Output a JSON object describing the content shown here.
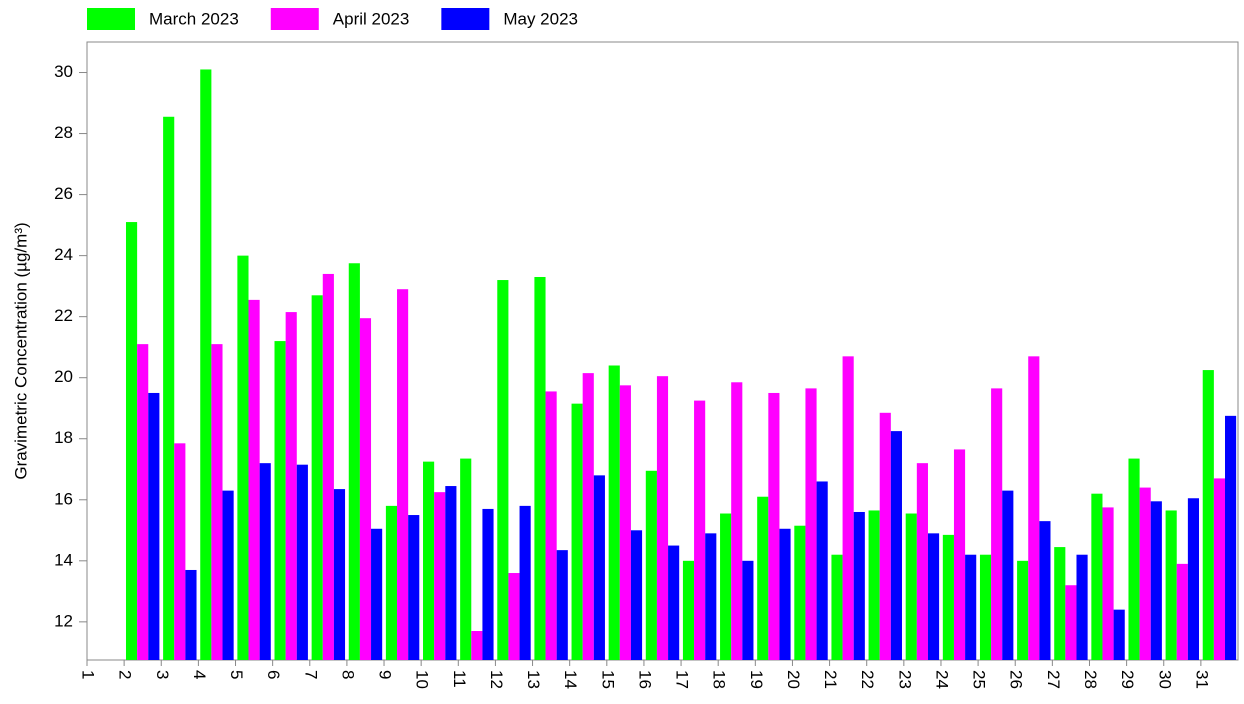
{
  "chart_data": {
    "type": "bar",
    "y_label": "Gravimetric Concentration  (µg/m³)",
    "categories": [
      "1",
      "2",
      "3",
      "4",
      "5",
      "6",
      "7",
      "8",
      "9",
      "10",
      "11",
      "12",
      "13",
      "14",
      "15",
      "16",
      "17",
      "18",
      "19",
      "20",
      "21",
      "22",
      "23",
      "24",
      "25",
      "26",
      "27",
      "28",
      "29",
      "30",
      "31"
    ],
    "series": [
      {
        "name": "March 2023",
        "color": "#00ff00",
        "values": [
          null,
          25.1,
          28.55,
          30.1,
          24.0,
          21.2,
          22.7,
          23.75,
          15.8,
          17.25,
          17.35,
          23.2,
          23.3,
          19.15,
          20.4,
          16.95,
          14.0,
          15.55,
          16.1,
          15.15,
          14.2,
          15.65,
          15.55,
          14.85,
          14.2,
          14.0,
          14.45,
          16.2,
          17.35,
          15.65,
          20.25
        ]
      },
      {
        "name": "April 2023",
        "color": "#ff00ff",
        "values": [
          null,
          21.1,
          17.85,
          21.1,
          22.55,
          22.15,
          23.4,
          21.95,
          22.9,
          16.25,
          11.7,
          13.6,
          19.55,
          20.15,
          19.75,
          20.05,
          19.25,
          19.85,
          19.5,
          19.65,
          20.7,
          18.85,
          17.2,
          17.65,
          19.65,
          20.7,
          13.2,
          15.75,
          16.4,
          13.9,
          16.7
        ]
      },
      {
        "name": "May 2023",
        "color": "#0000ff",
        "values": [
          null,
          19.5,
          13.7,
          16.3,
          17.2,
          17.15,
          16.35,
          15.05,
          15.5,
          16.45,
          15.7,
          15.8,
          14.35,
          16.8,
          15.0,
          14.5,
          14.9,
          14.0,
          15.05,
          16.6,
          15.6,
          18.25,
          14.9,
          14.2,
          16.3,
          15.3,
          14.2,
          12.4,
          15.95,
          16.05,
          18.75
        ]
      }
    ],
    "ylim": [
      10.75,
      31.0
    ],
    "yticks": [
      12,
      14,
      16,
      18,
      20,
      22,
      24,
      26,
      28,
      30
    ],
    "legend": "top-left"
  }
}
